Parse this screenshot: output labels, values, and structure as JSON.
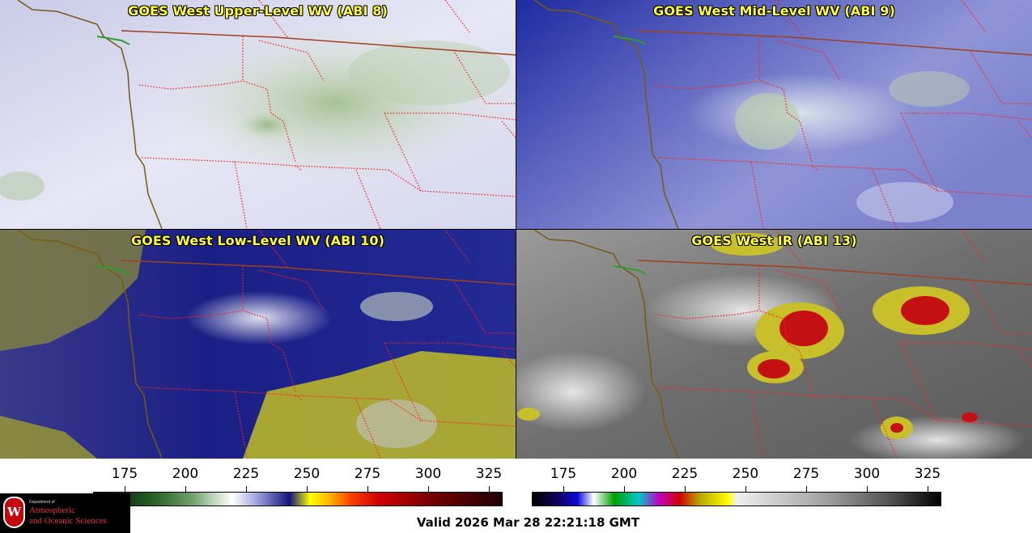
{
  "panels": [
    {
      "title": "GOES West Upper-Level WV (ABI 8)",
      "scheme": "wv-upper"
    },
    {
      "title": "GOES West Mid-Level WV (ABI 9)",
      "scheme": "wv-mid"
    },
    {
      "title": "GOES West Low-Level WV (ABI 10)",
      "scheme": "wv-low"
    },
    {
      "title": "GOES West IR (ABI 13)",
      "scheme": "ir"
    }
  ],
  "colorbars": [
    {
      "name": "water-vapor",
      "ticks": [
        "175",
        "200",
        "225",
        "250",
        "275",
        "300",
        "325"
      ],
      "range": [
        162,
        330
      ]
    },
    {
      "name": "infrared",
      "ticks": [
        "175",
        "200",
        "225",
        "250",
        "275",
        "300",
        "325"
      ],
      "range": [
        162,
        330
      ]
    }
  ],
  "colors": {
    "title_text": "#ffff33",
    "state_borders": "#ff2020",
    "coastline": "#7a5a10",
    "country_border": "#a04020"
  },
  "logo": {
    "line1": "Department of",
    "line2": "Atmospheric",
    "line3": "and Oceanic Sciences",
    "seal": "W"
  },
  "footer": {
    "valid": "Valid 2026 Mar 28 22:21:18 GMT"
  }
}
